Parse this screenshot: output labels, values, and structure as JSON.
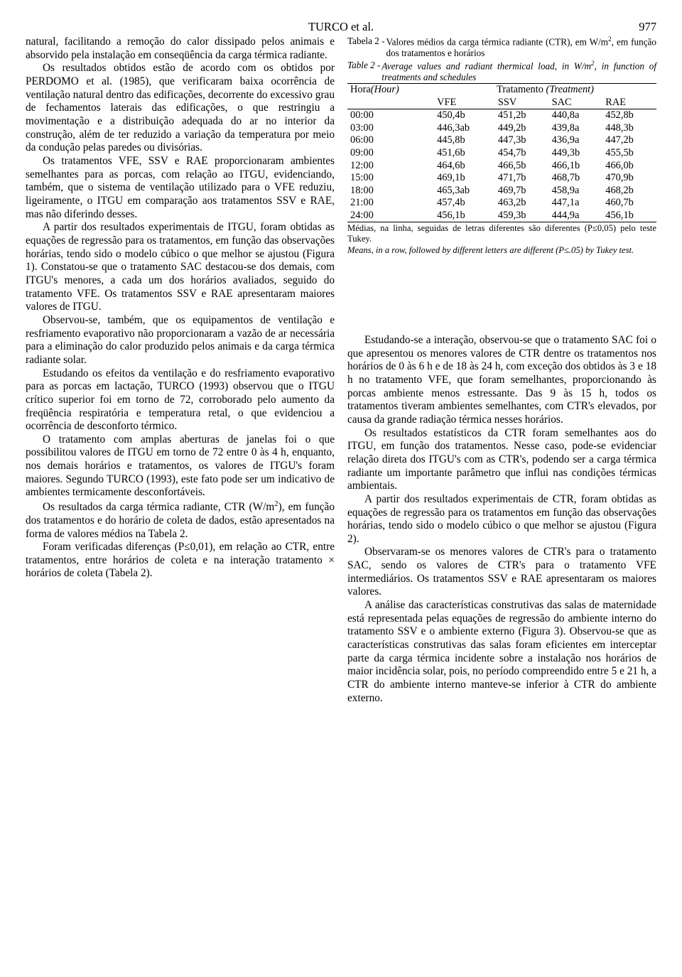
{
  "header": {
    "author": "TURCO et al.",
    "page": "977"
  },
  "left": {
    "p1": "natural, facilitando a remoção do calor dissipado pelos animais e absorvido pela instalação em conseqüência da carga térmica radiante.",
    "p2": "Os resultados obtidos estão de acordo com os obtidos por PERDOMO et al. (1985), que verificaram baixa ocorrência de ventilação natural dentro das edificações, decorrente do excessivo grau de fechamentos laterais das edificações, o que restringiu a movimentação e a distribuição adequada do ar no interior da construção, além de ter reduzido a variação da temperatura por meio da condução pelas paredes ou divisórias.",
    "p3": "Os tratamentos VFE, SSV e RAE proporcionaram ambientes semelhantes para as porcas, com relação ao ITGU, evidenciando, também, que o sistema de ventilação utilizado para o VFE reduziu, ligeiramente, o ITGU em comparação aos tratamentos SSV e RAE, mas não diferindo desses.",
    "p4": "A partir dos resultados experimentais de ITGU, foram obtidas as equações de regressão para os tratamentos, em função das observações horárias, tendo sido o modelo cúbico o que melhor se ajustou (Figura 1). Constatou-se que o tratamento SAC destacou-se dos demais, com ITGU's menores, a cada um dos horários avaliados, seguido do tratamento VFE. Os tratamentos SSV e RAE apresentaram maiores valores de ITGU.",
    "p5": "Observou-se, também, que os equipamentos de ventilação e resfriamento evaporativo não proporcionaram a vazão de ar necessária para a eliminação do calor produzido pelos animais e da carga térmica radiante solar.",
    "p6": "Estudando os efeitos da ventilação e do resfriamento evaporativo para as porcas em lactação, TURCO (1993) observou que o ITGU crítico superior foi em torno de 72, corroborado pelo aumento da freqüência respiratória e temperatura retal, o que evidenciou a ocorrência de desconforto térmico.",
    "p7": "O tratamento com amplas aberturas de janelas foi o que possibilitou valores de ITGU em torno de 72 entre 0 às 4 h, enquanto, nos demais horários e tratamentos, os valores de ITGU's foram maiores. Segundo TURCO (1993), este fato pode ser um indicativo de ambientes termicamente desconfortáveis.",
    "p8_pre": "Os resultados da carga térmica radiante, CTR (W/m",
    "p8_post": "), em função dos tratamentos e do horário de coleta de dados, estão apresentados na forma de valores médios na Tabela 2.",
    "p9": "Foram verificadas diferenças (P≤0,01), em relação ao CTR, entre tratamentos, entre horários de coleta e na interação tratamento × horários de coleta (Tabela 2)."
  },
  "table2": {
    "cap_pt_label": "Tabela 2 -",
    "cap_pt_pre": "Valores médios da carga térmica radiante (CTR), em W/m",
    "cap_pt_post": ", em função dos tratamentos e horários",
    "cap_en_label": "Table 2 -",
    "cap_en_pre": "Average values and radiant thermical load, in W/m",
    "cap_en_post": ", in function of treatments and schedules",
    "head_hora": "Hora",
    "head_hour": "(Hour)",
    "head_trat": "Tratamento ",
    "head_treat": "(Treatment)",
    "cols": [
      "VFE",
      "SSV",
      "SAC",
      "RAE"
    ],
    "rows": [
      [
        "00:00",
        "450,4b",
        "451,2b",
        "440,8a",
        "452,8b"
      ],
      [
        "03:00",
        "446,3ab",
        "449,2b",
        "439,8a",
        "448,3b"
      ],
      [
        "06:00",
        "445,8b",
        "447,3b",
        "436,9a",
        "447,2b"
      ],
      [
        "09:00",
        "451,6b",
        "454,7b",
        "449,3b",
        "455,5b"
      ],
      [
        "12:00",
        "464,6b",
        "466,5b",
        "466,1b",
        "466,0b"
      ],
      [
        "15:00",
        "469,1b",
        "471,7b",
        "468,7b",
        "470,9b"
      ],
      [
        "18:00",
        "465,3ab",
        "469,7b",
        "458,9a",
        "468,2b"
      ],
      [
        "21:00",
        "457,4b",
        "463,2b",
        "447,1a",
        "460,7b"
      ],
      [
        "24:00",
        "456,1b",
        "459,3b",
        "444,9a",
        "456,1b"
      ]
    ],
    "foot_pt": "Médias, na linha, seguidas de letras diferentes são diferentes (P≤0,05) pelo teste Tukey.",
    "foot_en": "Means, in a row, followed by different letters are different (P≤.05) by Tukey test."
  },
  "right": {
    "p1": "Estudando-se a interação, observou-se que o tratamento SAC foi o que apresentou os menores valores de CTR dentre os tratamentos nos horários de 0 às 6 h e de 18 às 24 h, com exceção dos obtidos às 3 e 18 h no tratamento VFE, que foram semelhantes, proporcionando às porcas ambiente menos estressante. Das 9 às 15 h, todos os tratamentos tiveram ambientes semelhantes, com CTR's elevados, por causa da grande radiação térmica nesses horários.",
    "p2": "Os resultados estatísticos da CTR foram semelhantes aos do ITGU, em função dos tratamentos. Nesse caso, pode-se evidenciar relação direta dos ITGU's com as CTR's, podendo ser a carga térmica radiante um importante parâmetro que influi nas condições térmicas ambientais.",
    "p3": "A partir dos resultados experimentais de CTR, foram obtidas as equações de regressão para os tratamentos em função das observações horárias, tendo sido o modelo cúbico o que melhor se ajustou (Figura 2).",
    "p4": "Observaram-se os menores valores de CTR's para o tratamento SAC, sendo os valores de CTR's para o tratamento VFE intermediários. Os tratamentos SSV e RAE apresentaram os maiores valores.",
    "p5": "A análise das características construtivas das salas de maternidade está representada pelas equações de regressão do ambiente interno do tratamento SSV e o ambiente externo (Figura 3). Observou-se que as características construtivas das salas foram eficientes em interceptar parte da carga térmica incidente sobre a instalação nos horários de maior incidência solar, pois, no período compreendido entre 5 e 21 h, a CTR do ambiente interno manteve-se inferior à CTR do ambiente externo."
  }
}
